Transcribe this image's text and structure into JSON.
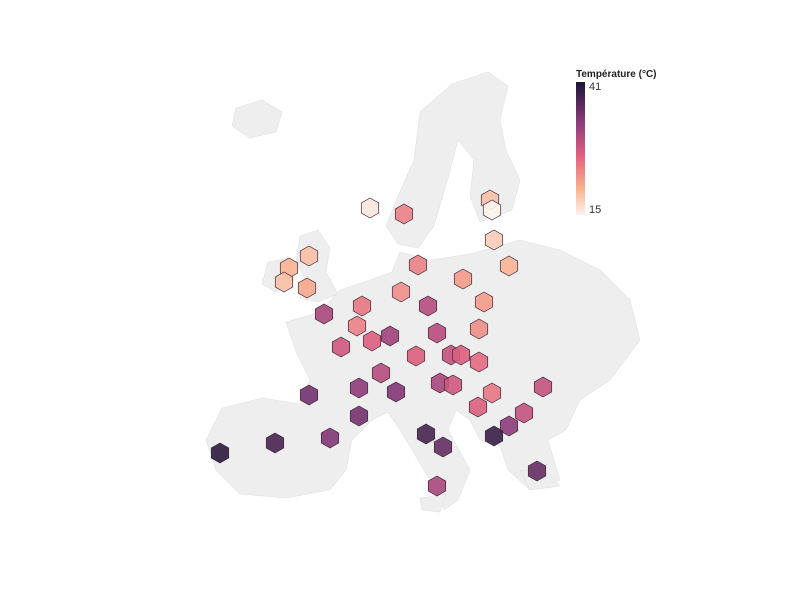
{
  "legend": {
    "title": "Température (°C)",
    "min": 15,
    "max": 41
  },
  "stations": [
    16,
    24,
    19,
    15,
    18,
    20,
    19,
    20,
    19,
    21,
    24,
    22,
    23,
    22,
    25,
    30,
    31,
    24,
    23,
    27,
    32,
    30,
    28,
    27,
    29,
    27,
    26,
    30,
    33,
    35,
    34,
    31,
    28,
    29,
    25,
    27,
    35,
    29,
    33,
    39,
    38,
    36,
    34,
    38,
    40,
    36,
    31
  ]
}
